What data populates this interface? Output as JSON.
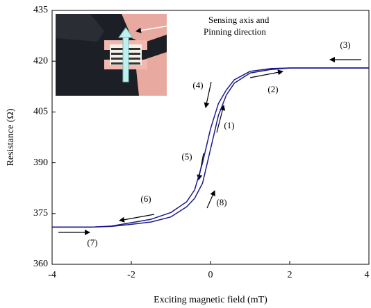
{
  "chart_data": {
    "type": "line",
    "x_label": "Exciting magnetic field (mT)",
    "y_label": "Resistance (Ω)",
    "x": [
      -4,
      -3,
      -2.5,
      -2,
      -1.5,
      -1,
      -0.6,
      -0.4,
      -0.2,
      0,
      0.2,
      0.4,
      0.6,
      1,
      1.5,
      2,
      2.5,
      3,
      4
    ],
    "series": [
      {
        "color": "#1a1a8c",
        "values": [
          371,
          371,
          371.2,
          371.8,
          372.5,
          374,
          377,
          379.5,
          384,
          394,
          404,
          410,
          413.5,
          416.5,
          417.5,
          418,
          418,
          418,
          418
        ]
      },
      {
        "color": "#1a1a8c",
        "values": [
          371,
          371,
          371.3,
          372.3,
          373.3,
          375.3,
          378.5,
          382,
          390,
          400,
          407.5,
          411.5,
          414.5,
          417,
          417.8,
          418,
          418,
          418,
          418
        ]
      }
    ],
    "xlim": [
      -4,
      4
    ],
    "ylim": [
      360,
      435
    ],
    "xticks": [
      -4,
      -2,
      0,
      2,
      4
    ],
    "yticks": [
      360,
      375,
      390,
      405,
      420,
      435
    ],
    "grid": false,
    "annotations": [
      "(1)",
      "(2)",
      "(3)",
      "(4)",
      "(5)",
      "(6)",
      "(7)",
      "(8)"
    ],
    "inset_label": [
      "Sensing axis and",
      "Pinning direction"
    ]
  }
}
